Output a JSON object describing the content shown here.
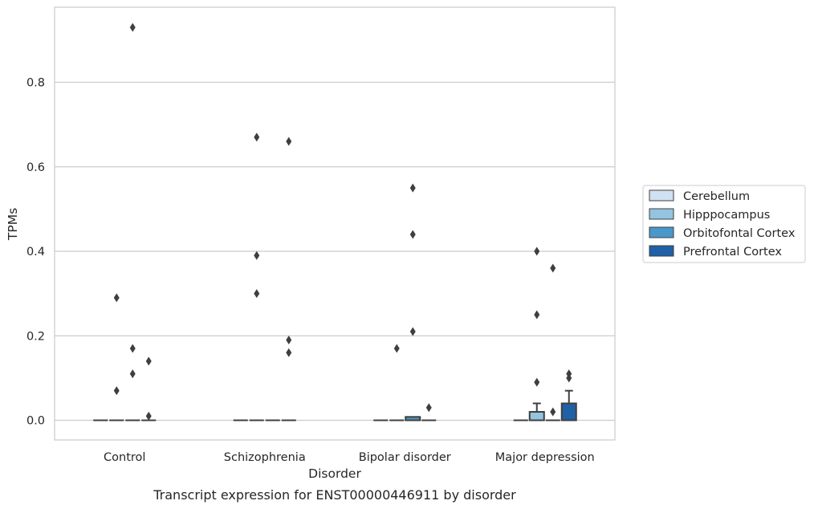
{
  "caption": "Transcript expression for ENST00000446911 by disorder",
  "chart_data": {
    "type": "box",
    "xlabel": "Disorder",
    "ylabel": "TPMs",
    "ylim": [
      -0.045,
      0.98
    ],
    "yticks": [
      0.0,
      0.2,
      0.4,
      0.6,
      0.8
    ],
    "ytick_labels": [
      "0.0",
      "0.2",
      "0.4",
      "0.6",
      "0.8"
    ],
    "grid": "horizontal",
    "legend_position": "right",
    "categories": [
      "Control",
      "Schizophrenia",
      "Bipolar disorder",
      "Major depression"
    ],
    "series": [
      {
        "name": "Cerebellum",
        "color": "#d0e1f2",
        "boxes": [
          {
            "q1": 0,
            "median": 0,
            "q3": 0,
            "whisker_low": 0,
            "whisker_high": 0,
            "outliers": []
          },
          {
            "q1": 0,
            "median": 0,
            "q3": 0,
            "whisker_low": 0,
            "whisker_high": 0,
            "outliers": []
          },
          {
            "q1": 0,
            "median": 0,
            "q3": 0,
            "whisker_low": 0,
            "whisker_high": 0,
            "outliers": []
          },
          {
            "q1": 0,
            "median": 0,
            "q3": 0,
            "whisker_low": 0,
            "whisker_high": 0,
            "outliers": []
          }
        ]
      },
      {
        "name": "Hipppocampus",
        "color": "#94c4df",
        "boxes": [
          {
            "q1": 0,
            "median": 0,
            "q3": 0,
            "whisker_low": 0,
            "whisker_high": 0,
            "outliers": [
              0.29,
              0.07
            ]
          },
          {
            "q1": 0,
            "median": 0,
            "q3": 0,
            "whisker_low": 0,
            "whisker_high": 0,
            "outliers": [
              0.67,
              0.39,
              0.3
            ]
          },
          {
            "q1": 0,
            "median": 0,
            "q3": 0,
            "whisker_low": 0,
            "whisker_high": 0,
            "outliers": [
              0.17
            ]
          },
          {
            "q1": 0,
            "median": 0,
            "q3": 0.02,
            "whisker_low": 0,
            "whisker_high": 0.04,
            "outliers": [
              0.4,
              0.25,
              0.09
            ]
          }
        ]
      },
      {
        "name": "Orbitofontal Cortex",
        "color": "#4a98c9",
        "boxes": [
          {
            "q1": 0,
            "median": 0,
            "q3": 0,
            "whisker_low": 0,
            "whisker_high": 0,
            "outliers": [
              0.93,
              0.17,
              0.11
            ]
          },
          {
            "q1": 0,
            "median": 0,
            "q3": 0,
            "whisker_low": 0,
            "whisker_high": 0,
            "outliers": []
          },
          {
            "q1": 0,
            "median": 0,
            "q3": 0.008,
            "whisker_low": 0,
            "whisker_high": 0.008,
            "outliers": [
              0.55,
              0.44,
              0.21
            ]
          },
          {
            "q1": 0,
            "median": 0,
            "q3": 0,
            "whisker_low": 0,
            "whisker_high": 0,
            "outliers": [
              0.36,
              0.02
            ]
          }
        ]
      },
      {
        "name": "Prefrontal Cortex",
        "color": "#2060a7",
        "boxes": [
          {
            "q1": 0,
            "median": 0,
            "q3": 0,
            "whisker_low": 0,
            "whisker_high": 0,
            "outliers": [
              0.14,
              0.01
            ]
          },
          {
            "q1": 0,
            "median": 0,
            "q3": 0,
            "whisker_low": 0,
            "whisker_high": 0,
            "outliers": [
              0.66,
              0.19,
              0.16
            ]
          },
          {
            "q1": 0,
            "median": 0,
            "q3": 0,
            "whisker_low": 0,
            "whisker_high": 0,
            "outliers": [
              0.03
            ]
          },
          {
            "q1": 0,
            "median": 0,
            "q3": 0.04,
            "whisker_low": 0,
            "whisker_high": 0.07,
            "outliers": [
              0.11,
              0.1
            ]
          }
        ]
      }
    ]
  }
}
